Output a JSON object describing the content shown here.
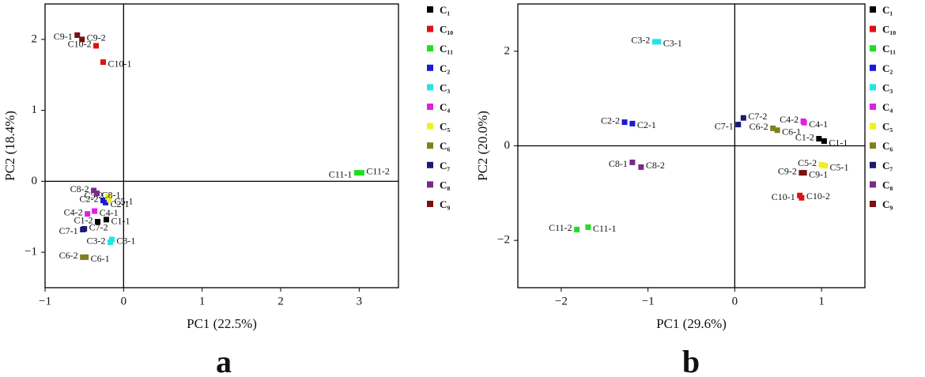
{
  "chart_data": [
    {
      "type": "scatter",
      "panel_label": "a",
      "xlabel": "PC1 (22.5%)",
      "ylabel": "PC2 (18.4%)",
      "xlim": [
        -1,
        3.5
      ],
      "ylim": [
        -1.5,
        2.5
      ],
      "xticks": [
        {
          "value": -1,
          "label": "−1"
        },
        0,
        1,
        2,
        3
      ],
      "yticks": [
        {
          "value": -1,
          "label": "−1"
        },
        0,
        1,
        2
      ],
      "series": [
        {
          "name": "C₁",
          "color": "#000000",
          "x": [
            -0.22,
            -0.33
          ],
          "y": [
            -0.54,
            -0.57
          ],
          "labels": [
            "C1-1",
            "C1-2"
          ]
        },
        {
          "name": "C₁₀",
          "color": "#e01010",
          "x": [
            -0.26,
            -0.35
          ],
          "y": [
            1.68,
            1.91
          ],
          "labels": [
            "C10-1",
            "C10-2"
          ]
        },
        {
          "name": "C₁₁",
          "color": "#22dd22",
          "x": [
            2.97,
            3.03
          ],
          "y": [
            0.12,
            0.12
          ],
          "labels": [
            "C11-1",
            "C11-2"
          ]
        },
        {
          "name": "C₂",
          "color": "#1a1adb",
          "x": [
            -0.23,
            -0.26
          ],
          "y": [
            -0.3,
            -0.27
          ],
          "labels": [
            "C2-1",
            "C2-2"
          ]
        },
        {
          "name": "C₃",
          "color": "#22e5e5",
          "x": [
            -0.15,
            -0.17
          ],
          "y": [
            -0.82,
            -0.86
          ],
          "labels": [
            "C3-1",
            "C3-2"
          ]
        },
        {
          "name": "C₄",
          "color": "#e020e0",
          "x": [
            -0.37,
            -0.46
          ],
          "y": [
            -0.42,
            -0.46
          ],
          "labels": [
            "C4-1",
            "C4-2"
          ]
        },
        {
          "name": "C₅",
          "color": "#f0f020",
          "x": [
            -0.18,
            -0.2
          ],
          "y": [
            -0.26,
            -0.22
          ],
          "labels": [
            "C5-1",
            "C5-2"
          ]
        },
        {
          "name": "C₆",
          "color": "#808020",
          "x": [
            -0.48,
            -0.52
          ],
          "y": [
            -1.07,
            -1.07
          ],
          "labels": [
            "C6-1",
            "C6-2"
          ]
        },
        {
          "name": "C₇",
          "color": "#1a1a70",
          "x": [
            -0.52,
            -0.5
          ],
          "y": [
            -0.68,
            -0.67
          ],
          "labels": [
            "C7-1",
            "C7-2"
          ]
        },
        {
          "name": "C₈",
          "color": "#7a2a8a",
          "x": [
            -0.34,
            -0.38
          ],
          "y": [
            -0.17,
            -0.13
          ],
          "labels": [
            "C8-1",
            "C8-2"
          ]
        },
        {
          "name": "C₉",
          "color": "#7a1010",
          "x": [
            -0.59,
            -0.53
          ],
          "y": [
            2.06,
            2.0
          ],
          "labels": [
            "C9-1",
            "C9-2"
          ]
        }
      ]
    },
    {
      "type": "scatter",
      "panel_label": "b",
      "xlabel": "PC1 (29.6%)",
      "ylabel": "PC2 (20.0%)",
      "xlim": [
        -2.5,
        1.5
      ],
      "ylim": [
        -3,
        3
      ],
      "xticks": [
        {
          "value": -2,
          "label": "−2"
        },
        {
          "value": -1,
          "label": "−1"
        },
        0,
        1
      ],
      "yticks": [
        {
          "value": -2,
          "label": "−2"
        },
        0,
        2
      ],
      "series": [
        {
          "name": "C₁",
          "color": "#000000",
          "x": [
            1.03,
            0.97
          ],
          "y": [
            0.1,
            0.15
          ],
          "labels": [
            "C1-1",
            "C1-2"
          ]
        },
        {
          "name": "C₁₀",
          "color": "#e01010",
          "x": [
            0.75,
            0.77
          ],
          "y": [
            -1.05,
            -1.1
          ],
          "labels": [
            "C10-1",
            "C10-2"
          ]
        },
        {
          "name": "C₁₁",
          "color": "#22dd22",
          "x": [
            -1.69,
            -1.82
          ],
          "y": [
            -1.72,
            -1.77
          ],
          "labels": [
            "C11-1",
            "C11-2"
          ]
        },
        {
          "name": "C₂",
          "color": "#1a1adb",
          "x": [
            -1.18,
            -1.27
          ],
          "y": [
            0.47,
            0.5
          ],
          "labels": [
            "C2-1",
            "C2-2"
          ]
        },
        {
          "name": "C₃",
          "color": "#22e5e5",
          "x": [
            -0.88,
            -0.92
          ],
          "y": [
            2.2,
            2.2
          ],
          "labels": [
            "C3-1",
            "C3-2"
          ]
        },
        {
          "name": "C₄",
          "color": "#e020e0",
          "x": [
            0.8,
            0.79
          ],
          "y": [
            0.49,
            0.52
          ],
          "labels": [
            "C4-1",
            "C4-2"
          ]
        },
        {
          "name": "C₅",
          "color": "#f0f020",
          "x": [
            1.04,
            1.0
          ],
          "y": [
            -0.42,
            -0.4
          ],
          "labels": [
            "C5-1",
            "C5-2"
          ]
        },
        {
          "name": "C₆",
          "color": "#808020",
          "x": [
            0.49,
            0.44
          ],
          "y": [
            0.33,
            0.37
          ],
          "labels": [
            "C6-1",
            "C6-2"
          ]
        },
        {
          "name": "C₇",
          "color": "#1a1a70",
          "x": [
            0.04,
            0.1
          ],
          "y": [
            0.45,
            0.59
          ],
          "labels": [
            "C7-1",
            "C7-2"
          ]
        },
        {
          "name": "C₈",
          "color": "#7a2a8a",
          "x": [
            -1.18,
            -1.08
          ],
          "y": [
            -0.35,
            -0.45
          ],
          "labels": [
            "C8-1",
            "C8-2"
          ]
        },
        {
          "name": "C₉",
          "color": "#7a1010",
          "x": [
            0.8,
            0.77
          ],
          "y": [
            -0.57,
            -0.57
          ],
          "labels": [
            "C9-1",
            "C9-2"
          ]
        }
      ]
    }
  ]
}
